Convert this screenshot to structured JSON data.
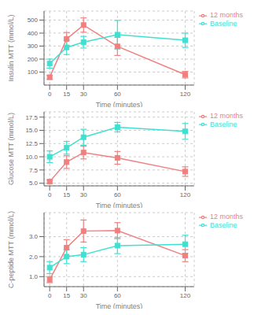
{
  "chart_data": [
    {
      "type": "line",
      "ylabel": "Insulin MTT (mmol/L)",
      "xlabel": "Time (minutes)",
      "x": [
        0,
        15,
        30,
        60,
        120
      ],
      "series": [
        {
          "name": "12 months",
          "color": "#F08080",
          "marker": "square",
          "values": [
            60,
            355,
            462,
            298,
            80
          ],
          "errors": [
            15,
            50,
            55,
            70,
            25
          ]
        },
        {
          "name": "Baseline",
          "color": "#40E0D0",
          "marker": "square",
          "values": [
            165,
            290,
            330,
            388,
            345
          ],
          "errors": [
            35,
            55,
            45,
            110,
            55
          ]
        }
      ],
      "xlim": [
        -5,
        128
      ],
      "xticks": [
        0,
        15,
        30,
        60,
        120
      ],
      "ylim": [
        0,
        570
      ],
      "yticks": [
        100,
        200,
        300,
        400,
        500
      ],
      "grid": true,
      "legend": "right"
    },
    {
      "type": "line",
      "ylabel": "Glucose MTT (mmol/L)",
      "xlabel": "Time (minutes)",
      "x": [
        0,
        15,
        30,
        60,
        120
      ],
      "series": [
        {
          "name": "12 months",
          "color": "#F08080",
          "marker": "square",
          "values": [
            5.3,
            9.0,
            10.8,
            9.8,
            7.2
          ],
          "errors": [
            0.3,
            1.2,
            1.2,
            1.2,
            0.9
          ]
        },
        {
          "name": "Baseline",
          "color": "#40E0D0",
          "marker": "square",
          "values": [
            10.0,
            11.7,
            13.7,
            15.6,
            14.8
          ],
          "errors": [
            1.1,
            1.2,
            1.5,
            0.9,
            1.5
          ]
        }
      ],
      "xlim": [
        -5,
        128
      ],
      "xticks": [
        0,
        15,
        30,
        60,
        120
      ],
      "ylim": [
        4.5,
        18.5
      ],
      "yticks": [
        {
          "value": 5.0,
          "label": "5.0"
        },
        {
          "value": 7.5,
          "label": "7.5"
        },
        {
          "value": 10.0,
          "label": "10.0"
        },
        {
          "value": 12.5,
          "label": "12.5"
        },
        {
          "value": 15.0,
          "label": "15.0"
        },
        {
          "value": 17.5,
          "label": "17.5"
        }
      ],
      "grid": true,
      "legend": "right"
    },
    {
      "type": "line",
      "ylabel": "C-peptide MTT (mmol/L)",
      "xlabel": "Time (minutes)",
      "x": [
        0,
        15,
        30,
        60,
        120
      ],
      "series": [
        {
          "name": "12 months",
          "color": "#F08080",
          "marker": "square",
          "values": [
            0.85,
            2.45,
            3.28,
            3.3,
            2.05
          ],
          "errors": [
            0.15,
            0.4,
            0.55,
            0.4,
            0.3
          ]
        },
        {
          "name": "Baseline",
          "color": "#40E0D0",
          "marker": "square",
          "values": [
            1.45,
            2.0,
            2.1,
            2.55,
            2.62
          ],
          "errors": [
            0.3,
            0.35,
            0.35,
            0.4,
            0.45
          ]
        }
      ],
      "xlim": [
        -5,
        128
      ],
      "xticks": [
        0,
        15,
        30,
        60,
        120
      ],
      "ylim": [
        0.5,
        4.2
      ],
      "yticks": [
        {
          "value": 1.0,
          "label": "1.0"
        },
        {
          "value": 2.0,
          "label": "2.0"
        },
        {
          "value": 3.0,
          "label": "3.0"
        }
      ],
      "grid": true,
      "legend": "right"
    }
  ]
}
